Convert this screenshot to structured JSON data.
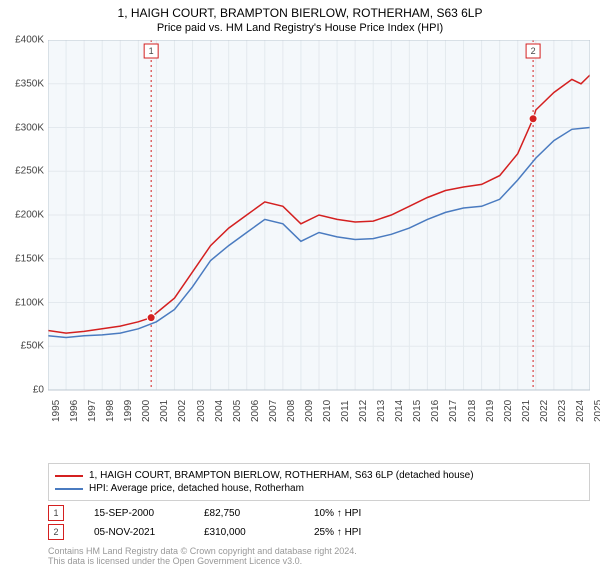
{
  "title": "1, HAIGH COURT, BRAMPTON BIERLOW, ROTHERHAM, S63 6LP",
  "subtitle": "Price paid vs. HM Land Registry's House Price Index (HPI)",
  "chart": {
    "type": "line",
    "background_color": "#ffffff",
    "plot_bg_color": "#f4f8fb",
    "grid_color": "#e3e9ee",
    "border_color": "#bcc7d1",
    "xlim": [
      1995,
      2025
    ],
    "ylim": [
      0,
      400000
    ],
    "ytick_step": 50000,
    "ytick_labels": [
      "£0",
      "£50K",
      "£100K",
      "£150K",
      "£200K",
      "£250K",
      "£300K",
      "£350K",
      "£400K"
    ],
    "xtick_step": 1,
    "xtick_labels": [
      "1995",
      "1996",
      "1997",
      "1998",
      "1999",
      "2000",
      "2001",
      "2002",
      "2003",
      "2004",
      "2005",
      "2006",
      "2007",
      "2008",
      "2009",
      "2010",
      "2011",
      "2012",
      "2013",
      "2014",
      "2015",
      "2016",
      "2017",
      "2018",
      "2019",
      "2020",
      "2021",
      "2022",
      "2023",
      "2024",
      "2025"
    ],
    "label_fontsize": 10,
    "title_fontsize": 12,
    "series": [
      {
        "name": "1, HAIGH COURT, BRAMPTON BIERLOW, ROTHERHAM, S63 6LP (detached house)",
        "color": "#d42020",
        "line_width": 1.5,
        "data": [
          [
            1995,
            68000
          ],
          [
            1996,
            65000
          ],
          [
            1997,
            67000
          ],
          [
            1998,
            70000
          ],
          [
            1999,
            73000
          ],
          [
            2000,
            78000
          ],
          [
            2000.71,
            82750
          ],
          [
            2001,
            88000
          ],
          [
            2002,
            105000
          ],
          [
            2003,
            135000
          ],
          [
            2004,
            165000
          ],
          [
            2005,
            185000
          ],
          [
            2006,
            200000
          ],
          [
            2007,
            215000
          ],
          [
            2008,
            210000
          ],
          [
            2009,
            190000
          ],
          [
            2010,
            200000
          ],
          [
            2011,
            195000
          ],
          [
            2012,
            192000
          ],
          [
            2013,
            193000
          ],
          [
            2014,
            200000
          ],
          [
            2015,
            210000
          ],
          [
            2016,
            220000
          ],
          [
            2017,
            228000
          ],
          [
            2018,
            232000
          ],
          [
            2019,
            235000
          ],
          [
            2020,
            245000
          ],
          [
            2021,
            270000
          ],
          [
            2021.85,
            310000
          ],
          [
            2022,
            320000
          ],
          [
            2023,
            340000
          ],
          [
            2024,
            355000
          ],
          [
            2024.5,
            350000
          ],
          [
            2025,
            360000
          ]
        ]
      },
      {
        "name": "HPI: Average price, detached house, Rotherham",
        "color": "#4a7bc0",
        "line_width": 1.5,
        "data": [
          [
            1995,
            62000
          ],
          [
            1996,
            60000
          ],
          [
            1997,
            62000
          ],
          [
            1998,
            63000
          ],
          [
            1999,
            65000
          ],
          [
            2000,
            70000
          ],
          [
            2001,
            78000
          ],
          [
            2002,
            92000
          ],
          [
            2003,
            118000
          ],
          [
            2004,
            148000
          ],
          [
            2005,
            165000
          ],
          [
            2006,
            180000
          ],
          [
            2007,
            195000
          ],
          [
            2008,
            190000
          ],
          [
            2009,
            170000
          ],
          [
            2010,
            180000
          ],
          [
            2011,
            175000
          ],
          [
            2012,
            172000
          ],
          [
            2013,
            173000
          ],
          [
            2014,
            178000
          ],
          [
            2015,
            185000
          ],
          [
            2016,
            195000
          ],
          [
            2017,
            203000
          ],
          [
            2018,
            208000
          ],
          [
            2019,
            210000
          ],
          [
            2020,
            218000
          ],
          [
            2021,
            240000
          ],
          [
            2022,
            265000
          ],
          [
            2023,
            285000
          ],
          [
            2024,
            298000
          ],
          [
            2025,
            300000
          ]
        ]
      }
    ],
    "markers": [
      {
        "num": "1",
        "x": 2000.71,
        "y": 82750,
        "box_color": "#d42020",
        "dash_color": "#d42020",
        "date": "15-SEP-2000",
        "price": "£82,750",
        "pct": "10%",
        "rel": "↑ HPI"
      },
      {
        "num": "2",
        "x": 2021.85,
        "y": 310000,
        "box_color": "#d42020",
        "dash_color": "#d42020",
        "date": "05-NOV-2021",
        "price": "£310,000",
        "pct": "25%",
        "rel": "↑ HPI"
      }
    ]
  },
  "legend": {
    "border_color": "#d0d0d0",
    "items": [
      {
        "color": "#d42020",
        "label": "1, HAIGH COURT, BRAMPTON BIERLOW, ROTHERHAM, S63 6LP (detached house)"
      },
      {
        "color": "#4a7bc0",
        "label": "HPI: Average price, detached house, Rotherham"
      }
    ]
  },
  "footer": [
    "Contains HM Land Registry data © Crown copyright and database right 2024.",
    "This data is licensed under the Open Government Licence v3.0."
  ]
}
